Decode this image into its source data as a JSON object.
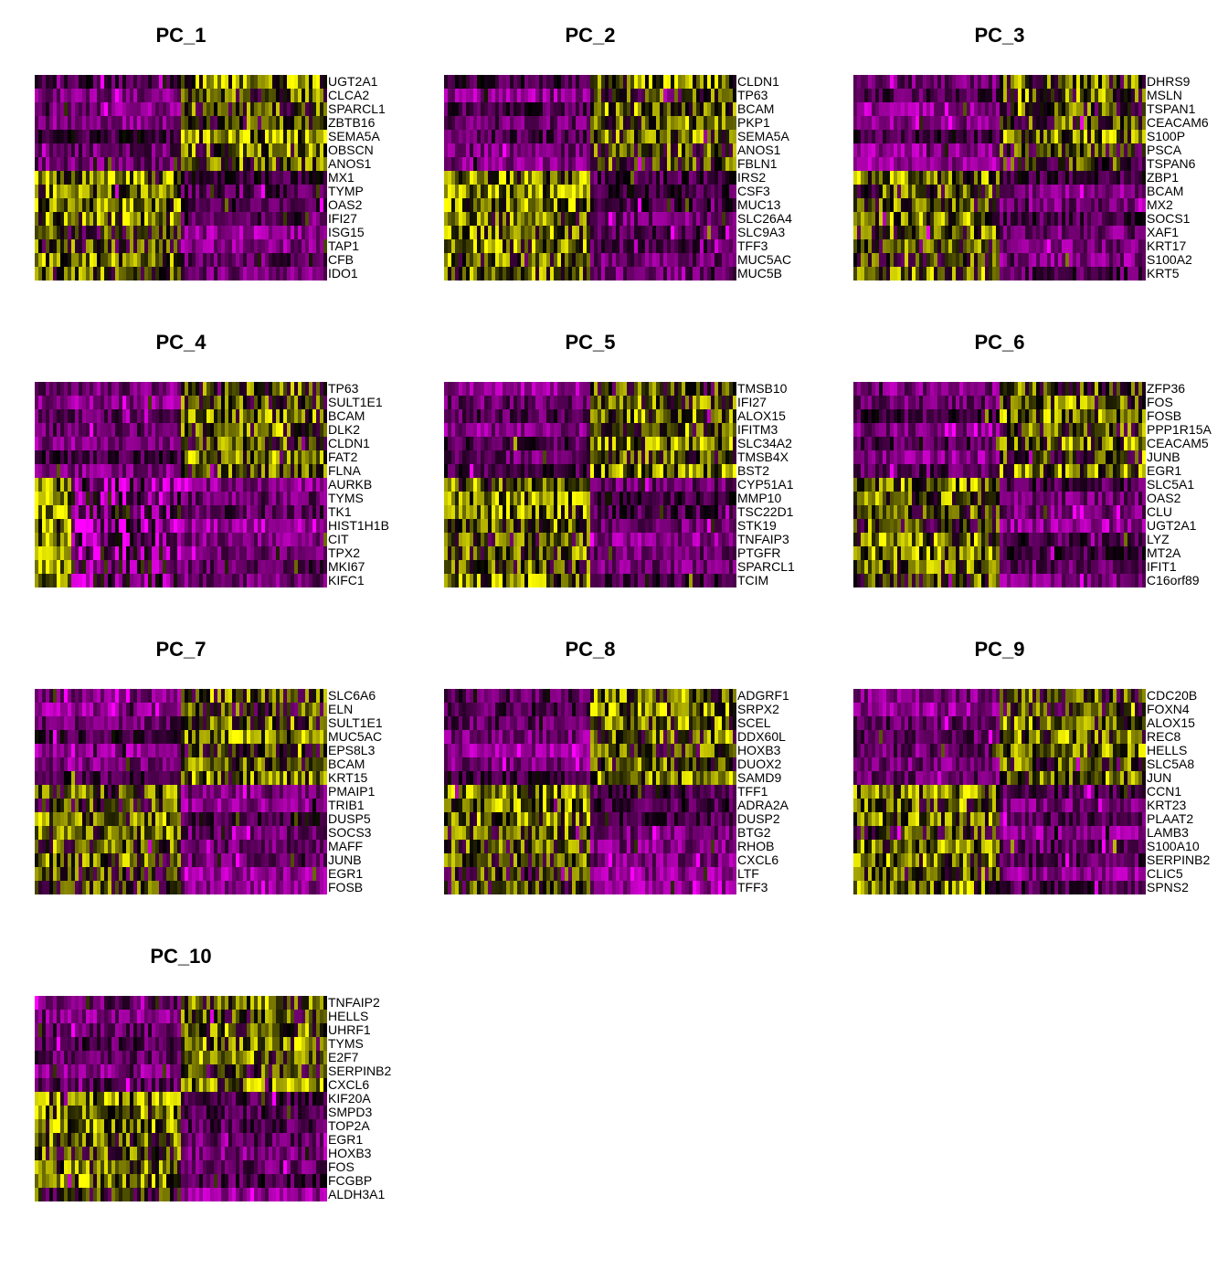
{
  "chart_data": [
    {
      "type": "heatmap",
      "title": "PC_1",
      "genes": [
        "UGT2A1",
        "CLCA2",
        "SPARCL1",
        "ZBTB16",
        "SEMA5A",
        "OBSCN",
        "ANOS1",
        "MX1",
        "TYMP",
        "OAS2",
        "IFI27",
        "ISG15",
        "TAP1",
        "CFB",
        "IDO1"
      ]
    },
    {
      "type": "heatmap",
      "title": "PC_2",
      "genes": [
        "CLDN1",
        "TP63",
        "BCAM",
        "PKP1",
        "SEMA5A",
        "ANOS1",
        "FBLN1",
        "IRS2",
        "CSF3",
        "MUC13",
        "SLC26A4",
        "SLC9A3",
        "TFF3",
        "MUC5AC",
        "MUC5B"
      ]
    },
    {
      "type": "heatmap",
      "title": "PC_3",
      "genes": [
        "DHRS9",
        "MSLN",
        "TSPAN1",
        "CEACAM6",
        "S100P",
        "PSCA",
        "TSPAN6",
        "ZBP1",
        "BCAM",
        "MX2",
        "SOCS1",
        "XAF1",
        "KRT17",
        "S100A2",
        "KRT5"
      ]
    },
    {
      "type": "heatmap",
      "title": "PC_4",
      "genes": [
        "TP63",
        "SULT1E1",
        "BCAM",
        "DLK2",
        "CLDN1",
        "FAT2",
        "FLNA",
        "AURKB",
        "TYMS",
        "TK1",
        "HIST1H1B",
        "CIT",
        "TPX2",
        "MKI67",
        "KIFC1"
      ]
    },
    {
      "type": "heatmap",
      "title": "PC_5",
      "genes": [
        "TMSB10",
        "IFI27",
        "ALOX15",
        "IFITM3",
        "SLC34A2",
        "TMSB4X",
        "BST2",
        "CYP51A1",
        "MMP10",
        "TSC22D1",
        "STK19",
        "TNFAIP3",
        "PTGFR",
        "SPARCL1",
        "TCIM"
      ]
    },
    {
      "type": "heatmap",
      "title": "PC_6",
      "genes": [
        "ZFP36",
        "FOS",
        "FOSB",
        "PPP1R15A",
        "CEACAM5",
        "JUNB",
        "EGR1",
        "SLC5A1",
        "OAS2",
        "CLU",
        "UGT2A1",
        "LYZ",
        "MT2A",
        "IFIT1",
        "C16orf89"
      ]
    },
    {
      "type": "heatmap",
      "title": "PC_7",
      "genes": [
        "SLC6A6",
        "ELN",
        "SULT1E1",
        "MUC5AC",
        "EPS8L3",
        "BCAM",
        "KRT15",
        "PMAIP1",
        "TRIB1",
        "DUSP5",
        "SOCS3",
        "MAFF",
        "JUNB",
        "EGR1",
        "FOSB"
      ]
    },
    {
      "type": "heatmap",
      "title": "PC_8",
      "genes": [
        "ADGRF1",
        "SRPX2",
        "SCEL",
        "DDX60L",
        "HOXB3",
        "DUOX2",
        "SAMD9",
        "TFF1",
        "ADRA2A",
        "DUSP2",
        "BTG2",
        "RHOB",
        "CXCL6",
        "LTF",
        "TFF3"
      ]
    },
    {
      "type": "heatmap",
      "title": "PC_9",
      "genes": [
        "CDC20B",
        "FOXN4",
        "ALOX15",
        "REC8",
        "HELLS",
        "SLC5A8",
        "JUN",
        "CCN1",
        "KRT23",
        "PLAAT2",
        "LAMB3",
        "S100A10",
        "SERPINB2",
        "CLIC5",
        "SPNS2"
      ]
    },
    {
      "type": "heatmap",
      "title": "PC_10",
      "genes": [
        "TNFAIP2",
        "HELLS",
        "UHRF1",
        "TYMS",
        "E2F7",
        "SERPINB2",
        "CXCL6",
        "KIF20A",
        "SMPD3",
        "TOP2A",
        "EGR1",
        "HOXB3",
        "FOS",
        "FCGBP",
        "ALDH3A1"
      ]
    }
  ],
  "colors": {
    "low": "#FF00FF",
    "mid": "#000000",
    "high": "#FFFF00"
  }
}
